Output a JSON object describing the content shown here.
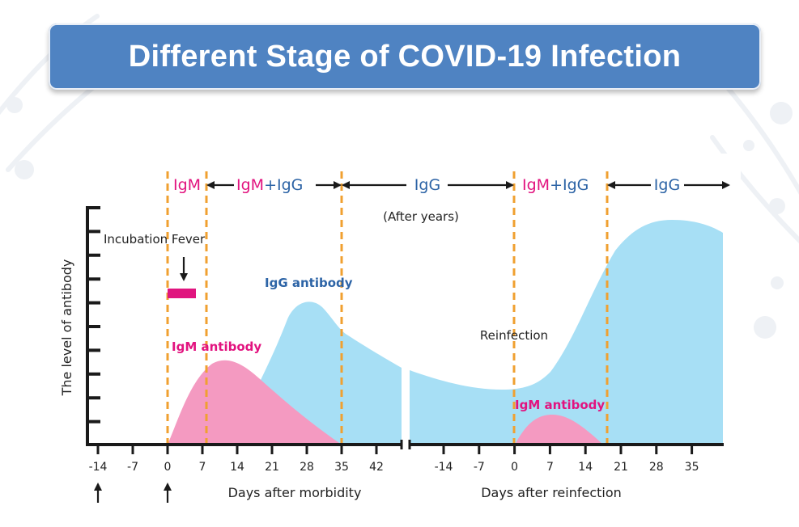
{
  "title": "Different Stage of COVID-19 Infection",
  "ylabel": "The level of antibody",
  "stages": {
    "s1": "IgM",
    "s2_igm": "IgM",
    "s2_plus": "+",
    "s2_igg": "IgG",
    "s3": "IgG",
    "s4_igm": "IgM",
    "s4_plus": "+",
    "s4_igg": "IgG",
    "s5": "IgG"
  },
  "annotations": {
    "after_years": "(After years)",
    "incubation_fever": "Incubation Fever",
    "igg_antibody": "IgG antibody",
    "igm_antibody": "IgM antibody",
    "reinfection": "Reinfection",
    "igm_antibody_2": "IgM antibody"
  },
  "xlabel_left": "Days after morbidity",
  "xlabel_right": "Days after reinfection",
  "ticks_left": [
    "-14",
    "-7",
    "0",
    "7",
    "14",
    "21",
    "28",
    "35",
    "42"
  ],
  "ticks_right": [
    "-14",
    "-7",
    "0",
    "7",
    "14",
    "21",
    "28",
    "35"
  ],
  "colors": {
    "title_bg": "#4f83c2",
    "igm_text": "#e2137f",
    "igg_text": "#2d64a6",
    "igg_fill": "#a7dff5",
    "igm_fill": "#f49ac1",
    "fever_bar": "#e0157f",
    "stage_line": "#f0a030",
    "axis": "#1a1a1a"
  }
}
